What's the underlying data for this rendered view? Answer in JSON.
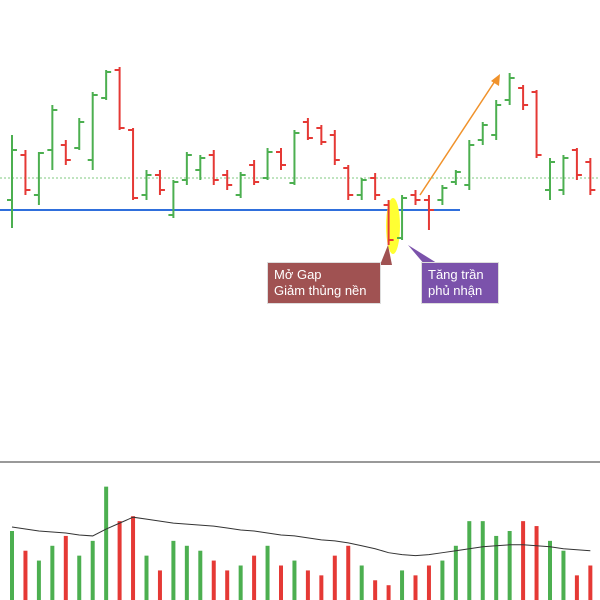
{
  "chart_data": {
    "type": "ohlc",
    "up_color": "#4caf50",
    "down_color": "#e53935",
    "ylim": [
      0,
      460
    ],
    "open": [
      260,
      305,
      265,
      310,
      315,
      312,
      300,
      362,
      390,
      330,
      265,
      285,
      245,
      280,
      290,
      305,
      285,
      265,
      295,
      282,
      308,
      277,
      338,
      332,
      325,
      292,
      265,
      282,
      255,
      222,
      265,
      260,
      260,
      278,
      275,
      320,
      325,
      360,
      372,
      368,
      270,
      270,
      310,
      298
    ],
    "high": [
      325,
      310,
      308,
      355,
      320,
      342,
      368,
      390,
      393,
      332,
      290,
      290,
      280,
      308,
      305,
      310,
      290,
      288,
      300,
      312,
      312,
      330,
      342,
      335,
      330,
      295,
      282,
      287,
      260,
      265,
      270,
      265,
      275,
      290,
      320,
      338,
      360,
      387,
      375,
      370,
      302,
      305,
      312,
      302
    ],
    "low": [
      232,
      265,
      255,
      290,
      295,
      310,
      290,
      360,
      330,
      260,
      260,
      265,
      242,
      275,
      280,
      275,
      270,
      262,
      275,
      280,
      290,
      275,
      320,
      315,
      295,
      260,
      260,
      260,
      215,
      220,
      255,
      230,
      255,
      275,
      270,
      315,
      320,
      355,
      350,
      302,
      260,
      265,
      280,
      265
    ],
    "close": [
      310,
      270,
      307,
      350,
      300,
      338,
      365,
      388,
      332,
      262,
      285,
      270,
      278,
      305,
      302,
      280,
      275,
      285,
      278,
      308,
      295,
      327,
      322,
      318,
      300,
      265,
      280,
      265,
      220,
      262,
      260,
      250,
      272,
      288,
      315,
      335,
      355,
      382,
      355,
      305,
      298,
      302,
      285,
      270
    ],
    "support_level": 250,
    "reference_level": 282,
    "volume": {
      "ylim": [
        0,
        140
      ],
      "values": [
        70,
        50,
        40,
        55,
        65,
        45,
        60,
        115,
        80,
        85,
        45,
        30,
        60,
        55,
        50,
        40,
        30,
        35,
        45,
        55,
        35,
        40,
        30,
        25,
        45,
        55,
        35,
        20,
        15,
        30,
        25,
        35,
        40,
        55,
        80,
        80,
        65,
        70,
        80,
        75,
        60,
        50,
        25,
        35
      ],
      "ma": [
        74,
        72,
        70,
        69,
        68,
        66,
        65,
        72,
        78,
        84,
        82,
        80,
        78,
        77,
        76,
        75,
        73,
        71,
        70,
        68,
        66,
        65,
        63,
        61,
        60,
        58,
        55,
        52,
        48,
        46,
        45,
        46,
        48,
        50,
        52,
        54,
        55,
        56,
        56,
        55,
        54,
        52,
        51,
        50
      ]
    },
    "annotations": [
      {
        "text": "Mở Gap\nGiảm thủng nền",
        "color": "#a05252"
      },
      {
        "text": "Tăng trần\nphủ nhận",
        "color": "#7b52ab"
      }
    ]
  }
}
